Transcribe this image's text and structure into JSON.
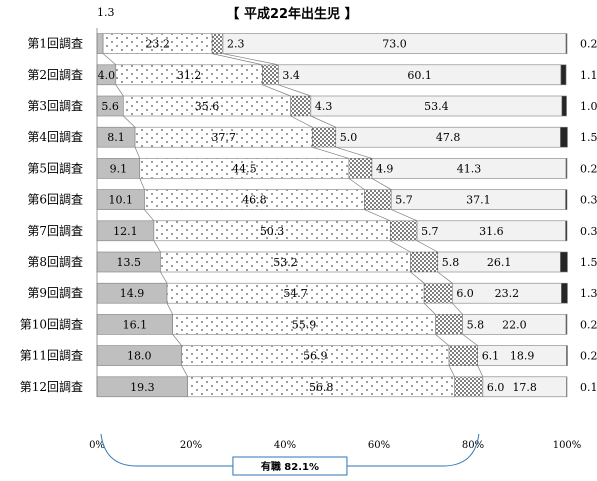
{
  "chart_data": {
    "type": "bar",
    "orientation": "horizontal",
    "stacked": true,
    "title": "【 平成22年出生児 】",
    "categories": [
      "第1回調査",
      "第2回調査",
      "第3回調査",
      "第4回調査",
      "第5回調査",
      "第6回調査",
      "第7回調査",
      "第8回調査",
      "第9回調査",
      "第10回調査",
      "第11回調査",
      "第12回調査"
    ],
    "series": [
      {
        "key": "s1",
        "color": "#bfbfbf",
        "pattern": "solid",
        "values": [
          1.3,
          4.0,
          5.6,
          8.1,
          9.1,
          10.1,
          12.1,
          13.5,
          14.9,
          16.1,
          18.0,
          19.3
        ],
        "labels": [
          "1.3",
          "4.0",
          "5.6",
          "8.1",
          "9.1",
          "10.1",
          "12.1",
          "13.5",
          "14.9",
          "16.1",
          "18.0",
          "19.3"
        ]
      },
      {
        "key": "s2",
        "color": "#ffffff",
        "pattern": "sparse-dots",
        "values": [
          23.2,
          31.2,
          35.6,
          37.7,
          44.5,
          46.8,
          50.3,
          53.2,
          54.7,
          55.9,
          56.9,
          56.8
        ],
        "labels": [
          "23.2",
          "31.2",
          "35.6",
          "37.7",
          "44.5",
          "46.8",
          "50.3",
          "53.2",
          "54.7",
          "55.9",
          "56.9",
          "56.8"
        ]
      },
      {
        "key": "s3",
        "color": "#ffffff",
        "pattern": "dense-dots",
        "values": [
          2.3,
          3.4,
          4.3,
          5.0,
          4.9,
          5.7,
          5.7,
          5.8,
          6.0,
          5.8,
          6.1,
          6.0
        ],
        "labels": [
          "2.3",
          "3.4",
          "4.3",
          "5.0",
          "4.9",
          "5.7",
          "5.7",
          "5.8",
          "6.0",
          "5.8",
          "6.1",
          "6.0"
        ]
      },
      {
        "key": "s4",
        "color": "#f2f2f2",
        "pattern": "solid",
        "values": [
          73.0,
          60.1,
          53.4,
          47.8,
          41.3,
          37.1,
          31.6,
          26.1,
          23.2,
          22.0,
          18.9,
          17.8
        ],
        "labels": [
          "73.0",
          "60.1",
          "53.4",
          "47.8",
          "41.3",
          "37.1",
          "31.6",
          "26.1",
          "23.2",
          "22.0",
          "18.9",
          "17.8"
        ]
      },
      {
        "key": "s5",
        "color": "#262626",
        "pattern": "solid",
        "values": [
          0.2,
          1.1,
          1.0,
          1.5,
          0.2,
          0.3,
          0.3,
          1.5,
          1.3,
          0.2,
          0.2,
          0.1
        ],
        "labels": [
          "0.2",
          "1.1",
          "1.0",
          "1.5",
          "0.2",
          "0.3",
          "0.3",
          "1.5",
          "1.3",
          "0.2",
          "0.2",
          "0.1"
        ]
      }
    ],
    "x_axis": {
      "min": 0,
      "max": 100,
      "ticks": [
        0,
        20,
        40,
        60,
        80,
        100
      ],
      "tick_labels": [
        "0%",
        "20%",
        "40%",
        "60%",
        "80%",
        "100%"
      ]
    },
    "annotation": {
      "text": "有職 82.1%",
      "from": 0,
      "to": 82.1
    },
    "grid": false,
    "legend": "none"
  }
}
